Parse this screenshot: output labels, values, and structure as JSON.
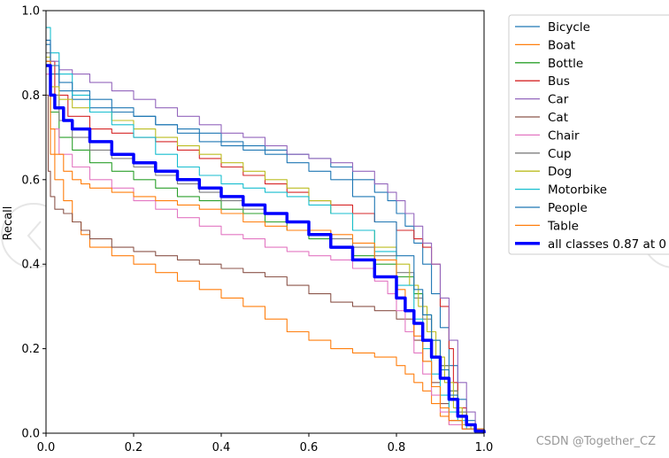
{
  "chart_data": {
    "type": "line",
    "title": "",
    "xlabel": "",
    "ylabel": "Recall",
    "xlim": [
      0.0,
      1.0
    ],
    "ylim": [
      0.0,
      1.0
    ],
    "xticks": [
      "0.0",
      "0.2",
      "0.4",
      "0.6",
      "0.8",
      "1.0"
    ],
    "yticks": [
      "0.0",
      "0.2",
      "0.4",
      "0.6",
      "0.8",
      "1.0"
    ],
    "legend_position": "outside-top-right",
    "series": [
      {
        "name": "Bicycle",
        "color": "#1f77b4",
        "bold": false,
        "x": [
          0,
          0.01,
          0.03,
          0.06,
          0.1,
          0.15,
          0.2,
          0.25,
          0.3,
          0.35,
          0.4,
          0.45,
          0.5,
          0.55,
          0.6,
          0.65,
          0.7,
          0.75,
          0.78,
          0.8,
          0.82,
          0.84,
          0.86,
          0.88,
          0.9,
          0.92,
          0.94,
          0.96,
          0.98,
          1.0
        ],
        "y": [
          0.92,
          0.85,
          0.81,
          0.79,
          0.77,
          0.76,
          0.75,
          0.73,
          0.72,
          0.71,
          0.69,
          0.68,
          0.67,
          0.66,
          0.65,
          0.63,
          0.6,
          0.57,
          0.55,
          0.52,
          0.49,
          0.45,
          0.4,
          0.33,
          0.25,
          0.16,
          0.08,
          0.03,
          0.01,
          0.0
        ]
      },
      {
        "name": "Boat",
        "color": "#ff7f0e",
        "bold": false,
        "x": [
          0,
          0.01,
          0.02,
          0.04,
          0.06,
          0.08,
          0.1,
          0.15,
          0.2,
          0.25,
          0.3,
          0.35,
          0.4,
          0.45,
          0.5,
          0.55,
          0.6,
          0.65,
          0.7,
          0.75,
          0.8,
          0.82,
          0.84,
          0.86,
          0.88,
          0.9,
          0.92,
          0.95,
          1.0
        ],
        "y": [
          0.85,
          0.66,
          0.6,
          0.55,
          0.5,
          0.47,
          0.44,
          0.42,
          0.4,
          0.38,
          0.36,
          0.34,
          0.32,
          0.3,
          0.27,
          0.24,
          0.22,
          0.2,
          0.19,
          0.18,
          0.16,
          0.14,
          0.12,
          0.1,
          0.07,
          0.04,
          0.02,
          0.01,
          0.0
        ]
      },
      {
        "name": "Bottle",
        "color": "#2ca02c",
        "bold": false,
        "x": [
          0,
          0.01,
          0.03,
          0.06,
          0.1,
          0.15,
          0.2,
          0.25,
          0.3,
          0.35,
          0.4,
          0.45,
          0.5,
          0.55,
          0.6,
          0.65,
          0.7,
          0.75,
          0.8,
          0.84,
          0.86,
          0.88,
          0.9,
          0.92,
          0.94,
          0.96,
          0.98,
          1.0
        ],
        "y": [
          0.88,
          0.76,
          0.7,
          0.67,
          0.64,
          0.62,
          0.6,
          0.58,
          0.56,
          0.55,
          0.53,
          0.52,
          0.5,
          0.48,
          0.46,
          0.44,
          0.42,
          0.4,
          0.37,
          0.33,
          0.28,
          0.22,
          0.16,
          0.1,
          0.05,
          0.02,
          0.01,
          0.0
        ]
      },
      {
        "name": "Bus",
        "color": "#d62728",
        "bold": false,
        "x": [
          0,
          0.02,
          0.05,
          0.1,
          0.15,
          0.2,
          0.25,
          0.3,
          0.35,
          0.4,
          0.45,
          0.5,
          0.55,
          0.6,
          0.65,
          0.7,
          0.75,
          0.8,
          0.84,
          0.86,
          0.88,
          0.9,
          0.92,
          0.93,
          0.94,
          0.96,
          0.98,
          1.0
        ],
        "y": [
          0.88,
          0.8,
          0.75,
          0.72,
          0.71,
          0.7,
          0.69,
          0.67,
          0.65,
          0.63,
          0.61,
          0.59,
          0.57,
          0.55,
          0.54,
          0.52,
          0.5,
          0.48,
          0.46,
          0.44,
          0.4,
          0.3,
          0.2,
          0.12,
          0.06,
          0.02,
          0.01,
          0.0
        ]
      },
      {
        "name": "Car",
        "color": "#9467bd",
        "bold": false,
        "x": [
          0,
          0.01,
          0.03,
          0.06,
          0.1,
          0.15,
          0.2,
          0.25,
          0.3,
          0.35,
          0.4,
          0.45,
          0.5,
          0.55,
          0.6,
          0.65,
          0.7,
          0.75,
          0.78,
          0.8,
          0.82,
          0.84,
          0.86,
          0.88,
          0.9,
          0.92,
          0.94,
          0.96,
          0.98,
          1.0
        ],
        "y": [
          0.93,
          0.88,
          0.86,
          0.85,
          0.83,
          0.81,
          0.79,
          0.77,
          0.75,
          0.73,
          0.71,
          0.7,
          0.68,
          0.66,
          0.65,
          0.64,
          0.62,
          0.59,
          0.57,
          0.55,
          0.52,
          0.49,
          0.45,
          0.4,
          0.32,
          0.22,
          0.12,
          0.05,
          0.01,
          0.0
        ]
      },
      {
        "name": "Cat",
        "color": "#8c564b",
        "bold": false,
        "x": [
          0,
          0.005,
          0.01,
          0.02,
          0.04,
          0.06,
          0.08,
          0.1,
          0.15,
          0.2,
          0.25,
          0.3,
          0.35,
          0.4,
          0.45,
          0.5,
          0.55,
          0.6,
          0.65,
          0.7,
          0.75,
          0.8,
          0.84,
          0.86,
          0.88,
          0.9,
          0.92,
          0.95,
          1.0
        ],
        "y": [
          0.8,
          0.62,
          0.56,
          0.53,
          0.52,
          0.5,
          0.48,
          0.46,
          0.44,
          0.43,
          0.42,
          0.41,
          0.4,
          0.39,
          0.38,
          0.37,
          0.35,
          0.33,
          0.31,
          0.3,
          0.29,
          0.27,
          0.22,
          0.17,
          0.12,
          0.07,
          0.03,
          0.01,
          0.0
        ]
      },
      {
        "name": "Chair",
        "color": "#e377c2",
        "bold": false,
        "x": [
          0,
          0.01,
          0.03,
          0.06,
          0.1,
          0.15,
          0.2,
          0.25,
          0.3,
          0.35,
          0.4,
          0.45,
          0.5,
          0.55,
          0.6,
          0.65,
          0.7,
          0.75,
          0.78,
          0.8,
          0.82,
          0.84,
          0.86,
          0.88,
          0.9,
          0.92,
          0.95,
          1.0
        ],
        "y": [
          0.85,
          0.72,
          0.66,
          0.63,
          0.6,
          0.58,
          0.55,
          0.53,
          0.51,
          0.49,
          0.47,
          0.46,
          0.44,
          0.43,
          0.42,
          0.41,
          0.39,
          0.36,
          0.33,
          0.29,
          0.24,
          0.19,
          0.14,
          0.09,
          0.05,
          0.02,
          0.01,
          0.0
        ]
      },
      {
        "name": "Cup",
        "color": "#7f7f7f",
        "bold": false,
        "x": [
          0,
          0.01,
          0.03,
          0.06,
          0.1,
          0.15,
          0.2,
          0.25,
          0.3,
          0.35,
          0.4,
          0.45,
          0.5,
          0.55,
          0.6,
          0.65,
          0.7,
          0.75,
          0.8,
          0.84,
          0.86,
          0.88,
          0.9,
          0.92,
          0.94,
          0.96,
          0.98,
          1.0
        ],
        "y": [
          0.9,
          0.8,
          0.74,
          0.7,
          0.67,
          0.65,
          0.63,
          0.61,
          0.59,
          0.57,
          0.55,
          0.53,
          0.52,
          0.5,
          0.48,
          0.46,
          0.44,
          0.42,
          0.38,
          0.32,
          0.27,
          0.22,
          0.16,
          0.1,
          0.05,
          0.02,
          0.01,
          0.0
        ]
      },
      {
        "name": "Dog",
        "color": "#bcbd22",
        "bold": false,
        "x": [
          0,
          0.01,
          0.03,
          0.06,
          0.1,
          0.15,
          0.2,
          0.25,
          0.3,
          0.35,
          0.4,
          0.45,
          0.5,
          0.55,
          0.6,
          0.65,
          0.7,
          0.75,
          0.8,
          0.83,
          0.85,
          0.87,
          0.89,
          0.91,
          0.93,
          0.95,
          0.97,
          1.0
        ],
        "y": [
          0.89,
          0.82,
          0.79,
          0.77,
          0.76,
          0.74,
          0.72,
          0.7,
          0.68,
          0.66,
          0.64,
          0.62,
          0.6,
          0.58,
          0.55,
          0.52,
          0.48,
          0.44,
          0.4,
          0.35,
          0.3,
          0.24,
          0.18,
          0.12,
          0.06,
          0.02,
          0.01,
          0.0
        ]
      },
      {
        "name": "Motorbike",
        "color": "#17becf",
        "bold": false,
        "x": [
          0,
          0.01,
          0.03,
          0.06,
          0.1,
          0.15,
          0.2,
          0.25,
          0.3,
          0.35,
          0.4,
          0.45,
          0.5,
          0.55,
          0.6,
          0.65,
          0.7,
          0.75,
          0.8,
          0.84,
          0.86,
          0.88,
          0.9,
          0.92,
          0.94,
          0.96,
          0.98,
          1.0
        ],
        "y": [
          0.96,
          0.9,
          0.85,
          0.8,
          0.76,
          0.73,
          0.7,
          0.66,
          0.63,
          0.61,
          0.59,
          0.58,
          0.57,
          0.56,
          0.54,
          0.52,
          0.48,
          0.43,
          0.35,
          0.27,
          0.2,
          0.14,
          0.09,
          0.05,
          0.03,
          0.01,
          0.0,
          0.0
        ]
      },
      {
        "name": "People",
        "color": "#1f77b4",
        "bold": false,
        "x": [
          0,
          0.01,
          0.03,
          0.06,
          0.1,
          0.15,
          0.2,
          0.25,
          0.3,
          0.35,
          0.4,
          0.45,
          0.5,
          0.55,
          0.6,
          0.65,
          0.7,
          0.75,
          0.8,
          0.84,
          0.86,
          0.88,
          0.9,
          0.92,
          0.94,
          0.96,
          0.98,
          1.0
        ],
        "y": [
          0.93,
          0.87,
          0.83,
          0.81,
          0.79,
          0.77,
          0.75,
          0.73,
          0.71,
          0.69,
          0.68,
          0.67,
          0.66,
          0.64,
          0.62,
          0.6,
          0.56,
          0.5,
          0.42,
          0.34,
          0.28,
          0.22,
          0.15,
          0.09,
          0.04,
          0.02,
          0.01,
          0.0
        ]
      },
      {
        "name": "Table",
        "color": "#ff7f0e",
        "bold": false,
        "x": [
          0,
          0.01,
          0.02,
          0.04,
          0.06,
          0.08,
          0.1,
          0.15,
          0.2,
          0.25,
          0.3,
          0.35,
          0.4,
          0.45,
          0.5,
          0.55,
          0.6,
          0.65,
          0.7,
          0.75,
          0.8,
          0.82,
          0.84,
          0.86,
          0.88,
          0.9,
          0.92,
          0.95,
          1.0
        ],
        "y": [
          0.88,
          0.72,
          0.66,
          0.62,
          0.6,
          0.59,
          0.58,
          0.57,
          0.56,
          0.55,
          0.54,
          0.53,
          0.52,
          0.5,
          0.49,
          0.48,
          0.48,
          0.47,
          0.45,
          0.41,
          0.34,
          0.29,
          0.23,
          0.17,
          0.11,
          0.06,
          0.03,
          0.01,
          0.0
        ]
      },
      {
        "name": "all classes 0.87 at 0",
        "color": "#0000ff",
        "bold": true,
        "x": [
          0,
          0.01,
          0.02,
          0.04,
          0.06,
          0.1,
          0.15,
          0.2,
          0.25,
          0.3,
          0.35,
          0.4,
          0.45,
          0.5,
          0.55,
          0.6,
          0.65,
          0.7,
          0.75,
          0.8,
          0.82,
          0.84,
          0.86,
          0.88,
          0.9,
          0.92,
          0.94,
          0.96,
          0.98,
          1.0
        ],
        "y": [
          0.87,
          0.8,
          0.77,
          0.74,
          0.72,
          0.69,
          0.66,
          0.64,
          0.62,
          0.6,
          0.58,
          0.56,
          0.54,
          0.52,
          0.5,
          0.47,
          0.44,
          0.41,
          0.37,
          0.32,
          0.29,
          0.26,
          0.22,
          0.18,
          0.13,
          0.08,
          0.04,
          0.02,
          0.005,
          0.0
        ]
      }
    ]
  },
  "watermark": {
    "text": "CSDN @Together_CZ"
  }
}
